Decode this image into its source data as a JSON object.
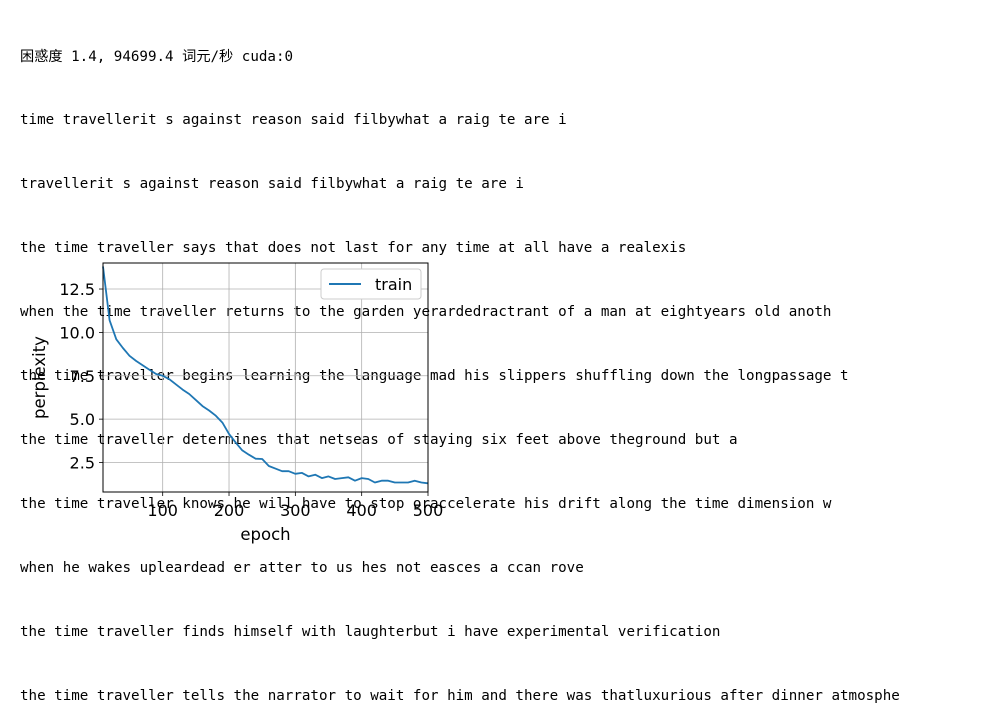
{
  "output": {
    "header": "困惑度 1.4, 94699.4 词元/秒 cuda:0",
    "lines": [
      "time travellerit s against reason said filbywhat a raig te are i",
      "travellerit s against reason said filbywhat a raig te are i",
      "the time traveller says that does not last for any time at all have a realexis",
      "when the time traveller returns to the garden yerardedractrant of a man at eightyears old anoth",
      "the time traveller begins learning the language mad his slippers shuffling down the longpassage t",
      "the time traveller determines that netseas of staying six feet above theground but a",
      "the time traveller knows he will have to stop oraccelerate his drift along the time dimension w",
      "when he wakes upleardead er atter to us hes not easces a ccan rove",
      "the time traveller finds himself with laughterbut i have experimental verification",
      "the time traveller tells the narrator to wait for him and there was thatluxurious after dinner atmosphe"
    ]
  },
  "chart_data": {
    "type": "line",
    "title": "",
    "xlabel": "epoch",
    "ylabel": "perplexity",
    "xlim": [
      10,
      500
    ],
    "ylim": [
      0.8,
      14.0
    ],
    "xticks": [
      100,
      200,
      300,
      400,
      500
    ],
    "xtick_labels": [
      "100",
      "200",
      "300",
      "400",
      "500"
    ],
    "yticks": [
      2.5,
      5.0,
      7.5,
      10.0,
      12.5
    ],
    "ytick_labels": [
      "2.5",
      "5.0",
      "7.5",
      "10.0",
      "12.5"
    ],
    "grid": true,
    "legend": "top-right",
    "series": [
      {
        "name": "train",
        "color": "#1f77b4",
        "x": [
          10,
          20,
          30,
          40,
          50,
          60,
          70,
          80,
          90,
          100,
          110,
          120,
          130,
          140,
          150,
          160,
          170,
          180,
          190,
          200,
          210,
          220,
          230,
          240,
          250,
          260,
          270,
          280,
          290,
          300,
          310,
          320,
          330,
          340,
          350,
          360,
          370,
          380,
          390,
          400,
          410,
          420,
          430,
          440,
          450,
          460,
          470,
          480,
          490,
          500
        ],
        "values": [
          13.8,
          10.7,
          9.6,
          9.1,
          8.65,
          8.35,
          8.1,
          7.85,
          7.6,
          7.5,
          7.3,
          7.0,
          6.7,
          6.45,
          6.1,
          5.75,
          5.5,
          5.2,
          4.8,
          4.15,
          3.65,
          3.2,
          2.95,
          2.72,
          2.7,
          2.3,
          2.15,
          2.0,
          2.0,
          1.85,
          1.9,
          1.7,
          1.8,
          1.6,
          1.7,
          1.55,
          1.6,
          1.65,
          1.45,
          1.6,
          1.55,
          1.35,
          1.45,
          1.45,
          1.35,
          1.35,
          1.35,
          1.45,
          1.35,
          1.3
        ]
      }
    ]
  }
}
